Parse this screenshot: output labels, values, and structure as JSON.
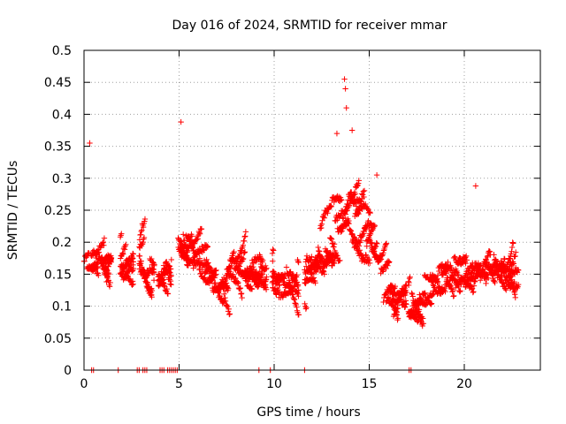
{
  "chart_data": {
    "type": "scatter",
    "title": "Day 016 of 2024, SRMTID for receiver mmar",
    "xlabel": "GPS time / hours",
    "ylabel": "SRMTID / TECUs",
    "xlim": [
      0,
      24
    ],
    "ylim": [
      0,
      0.5
    ],
    "x_ticks": [
      0,
      5,
      10,
      15,
      20
    ],
    "y_ticks": [
      0,
      0.05,
      0.1,
      0.15,
      0.2,
      0.25,
      0.3,
      0.35,
      0.4,
      0.45,
      0.5
    ],
    "x_tick_labels": [
      "0",
      "5",
      "10",
      "15",
      "20"
    ],
    "y_tick_labels": [
      "0",
      "0.05",
      "0.1",
      "0.15",
      "0.2",
      "0.25",
      "0.3",
      "0.35",
      "0.4",
      "0.45",
      "0.5"
    ],
    "grid": true,
    "marker": "+",
    "marker_color": "#ff0000",
    "series": [
      {
        "name": "SRMTID",
        "envelope_description": "approximate central value and spread per hour read from the scatter",
        "hourly_center": [
          0.17,
          0.17,
          0.16,
          0.17,
          0.15,
          0.21,
          0.17,
          0.13,
          0.16,
          0.15,
          0.13,
          0.15,
          0.16,
          0.22,
          0.25,
          0.19,
          0.11,
          0.1,
          0.13,
          0.15,
          0.15,
          0.16,
          0.15,
          0.15
        ],
        "hourly_spread": [
          0.05,
          0.06,
          0.06,
          0.07,
          0.07,
          0.11,
          0.07,
          0.06,
          0.06,
          0.06,
          0.07,
          0.08,
          0.09,
          0.12,
          0.13,
          0.09,
          0.05,
          0.05,
          0.08,
          0.07,
          0.08,
          0.08,
          0.06,
          0.05
        ],
        "peaks": [
          {
            "x": 0.3,
            "y": 0.355
          },
          {
            "x": 5.1,
            "y": 0.388
          },
          {
            "x": 13.3,
            "y": 0.37
          },
          {
            "x": 13.7,
            "y": 0.455
          },
          {
            "x": 13.75,
            "y": 0.44
          },
          {
            "x": 13.8,
            "y": 0.41
          },
          {
            "x": 14.1,
            "y": 0.375
          },
          {
            "x": 15.4,
            "y": 0.305
          },
          {
            "x": 20.6,
            "y": 0.288
          }
        ],
        "zero_values_x": [
          0.4,
          0.5,
          1.8,
          2.8,
          2.9,
          3.1,
          3.2,
          3.3,
          4.0,
          4.1,
          4.2,
          4.4,
          4.5,
          4.6,
          4.7,
          4.8,
          4.9,
          9.2,
          9.8,
          11.6,
          17.1,
          17.2
        ]
      }
    ]
  }
}
